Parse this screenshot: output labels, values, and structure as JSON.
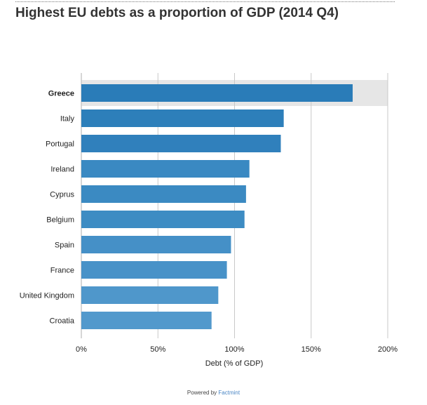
{
  "title": "Highest EU debts as a proportion of GDP (2014 Q4)",
  "footer": {
    "prefix": "Powered by ",
    "brand": "Factmint"
  },
  "chart_data": {
    "type": "bar",
    "orientation": "horizontal",
    "title": "Highest EU debts as a proportion of GDP (2014 Q4)",
    "xlabel": "Debt (% of GDP)",
    "ylabel": "",
    "xlim": [
      0,
      200
    ],
    "ticks": [
      0,
      50,
      100,
      150,
      200
    ],
    "tick_labels": [
      "0%",
      "50%",
      "100%",
      "150%",
      "200%"
    ],
    "grid": true,
    "highlighted": "Greece",
    "categories": [
      "Greece",
      "Italy",
      "Portugal",
      "Ireland",
      "Cyprus",
      "Belgium",
      "Spain",
      "France",
      "United Kingdom",
      "Croatia"
    ],
    "values": [
      177.1,
      132.1,
      130.2,
      109.7,
      107.5,
      106.5,
      97.7,
      95.0,
      89.4,
      85.0
    ],
    "colors": [
      "#2a7cb8",
      "#2d7fba",
      "#3080bc",
      "#3a89c2",
      "#3b8ac2",
      "#3d8cc3",
      "#4590c7",
      "#4892c8",
      "#4f97cb",
      "#5299cc"
    ],
    "highlight_band_color": "#e6e6e6",
    "grid_color": "#c8c8c8"
  }
}
